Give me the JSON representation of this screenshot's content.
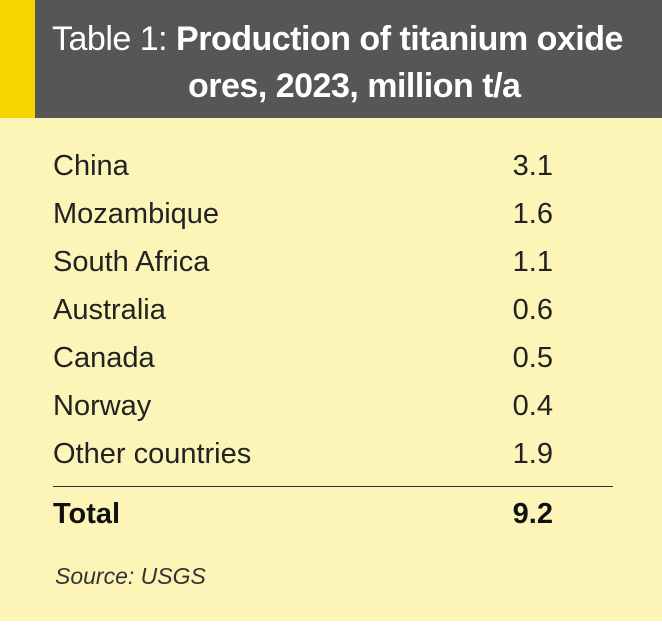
{
  "table": {
    "title_prefix": "Table 1:",
    "title_line1": "Production of titanium oxide",
    "title_line2": "ores, 2023, million t/a",
    "rows": [
      {
        "country": "China",
        "value": "3.1"
      },
      {
        "country": "Mozambique",
        "value": "1.6"
      },
      {
        "country": "South Africa",
        "value": "1.1"
      },
      {
        "country": "Australia",
        "value": "0.6"
      },
      {
        "country": "Canada",
        "value": "0.5"
      },
      {
        "country": "Norway",
        "value": "0.4"
      },
      {
        "country": "Other countries",
        "value": "1.9"
      }
    ],
    "total": {
      "label": "Total",
      "value": "9.2"
    },
    "source": "Source: USGS"
  },
  "colors": {
    "header_background": "#565656",
    "accent": "#f6d400",
    "body_background": "#fdf5b8"
  }
}
